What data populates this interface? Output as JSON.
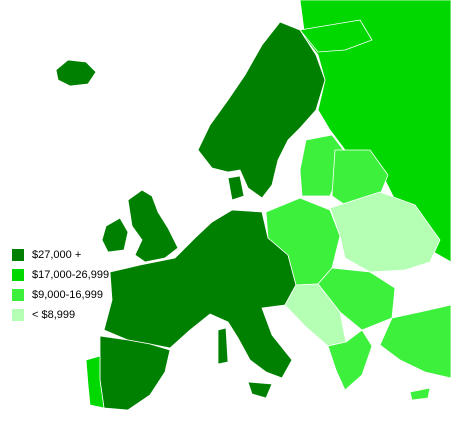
{
  "legend": {
    "items": [
      {
        "label": "$27,000 +",
        "color": "#008000"
      },
      {
        "label": "$17,000-26,999",
        "color": "#00d800"
      },
      {
        "label": "$9,000-16,999",
        "color": "#3cf03c"
      },
      {
        "label": "< $8,999",
        "color": "#b4ffb4"
      }
    ]
  }
}
